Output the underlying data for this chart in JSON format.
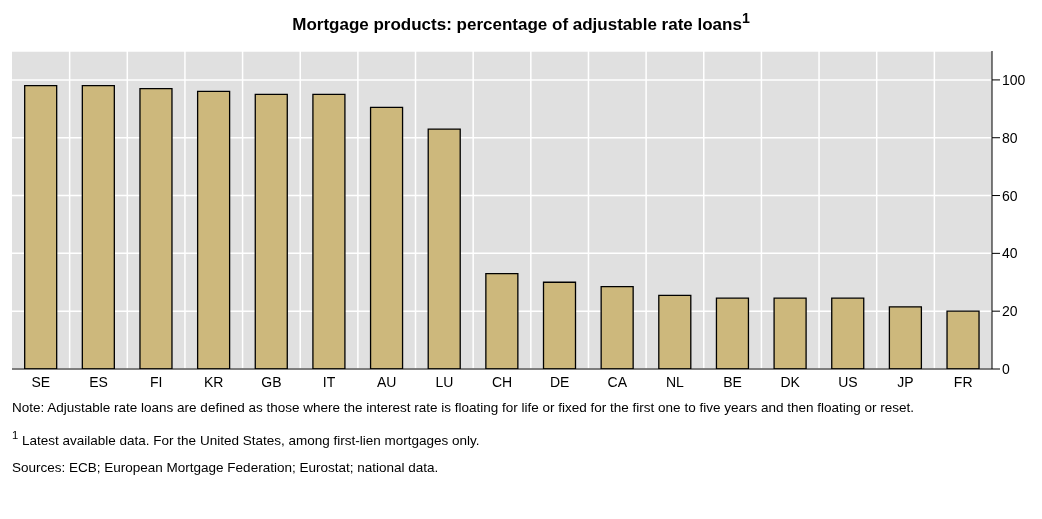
{
  "chart_data": {
    "type": "bar",
    "title": "Mortgage products: percentage of adjustable rate loans$^{1}$",
    "categories": [
      "SE",
      "ES",
      "FI",
      "KR",
      "GB",
      "IT",
      "AU",
      "LU",
      "CH",
      "DE",
      "CA",
      "NL",
      "BE",
      "DK",
      "US",
      "JP",
      "FR"
    ],
    "values": [
      98,
      98,
      97,
      96,
      95,
      95,
      90.5,
      83,
      33,
      30,
      28.5,
      25.5,
      24.5,
      24.5,
      24.5,
      21.5,
      20
    ],
    "color": "#cdb87c",
    "ylim": [
      0,
      110
    ],
    "yticks": [
      0,
      20,
      40,
      60,
      80,
      100
    ],
    "grid": true,
    "annotations": [
      "Note: Adjustable rate loans are defined as those where the interest rate is floating for life or fixed for the first one to five years and then floating or reset.",
      "$^{1}$ Latest available data. For the United States, among first-lien mortgages only.",
      "Sources: ECB; European Mortgage Federation; Eurostat; national data."
    ]
  }
}
